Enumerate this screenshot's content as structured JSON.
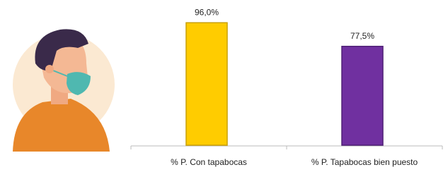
{
  "chart_data": {
    "type": "bar",
    "categories": [
      "% P. Con tapabocas",
      "% P. Tapabocas bien puesto"
    ],
    "values": [
      96.0,
      77.5
    ],
    "value_labels": [
      "96,0%",
      "77,5%"
    ],
    "colors": [
      "#ffcc00",
      "#7030a0"
    ],
    "ylim": [
      0,
      100
    ]
  }
}
